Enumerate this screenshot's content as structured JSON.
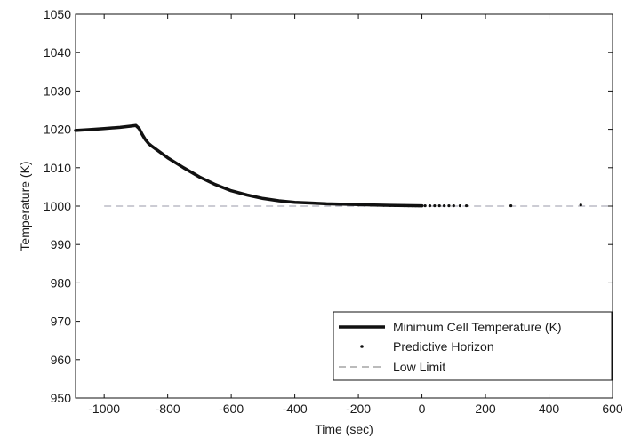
{
  "chart_data": {
    "type": "line",
    "title": "",
    "xlabel": "Time (sec)",
    "ylabel": "Temperature (K)",
    "xlim": [
      -1090,
      600
    ],
    "ylim": [
      950,
      1050
    ],
    "xticks": [
      -1000,
      -800,
      -600,
      -400,
      -200,
      0,
      200,
      400,
      600
    ],
    "yticks": [
      950,
      960,
      970,
      980,
      990,
      1000,
      1010,
      1020,
      1030,
      1040,
      1050
    ],
    "grid": false,
    "legend_position": "bottom-right",
    "series": [
      {
        "name": "Minimum Cell Temperature (K)",
        "style": "solid-thick",
        "x": [
          -1090,
          -1050,
          -1000,
          -950,
          -920,
          -900,
          -890,
          -880,
          -870,
          -860,
          -850,
          -800,
          -750,
          -700,
          -650,
          -600,
          -550,
          -500,
          -450,
          -400,
          -350,
          -300,
          -250,
          -200,
          -150,
          -100,
          -50,
          0
        ],
        "y": [
          1019.7,
          1019.9,
          1020.2,
          1020.5,
          1020.8,
          1021.0,
          1020.2,
          1018.6,
          1017.3,
          1016.3,
          1015.6,
          1012.6,
          1010.0,
          1007.6,
          1005.6,
          1004.0,
          1002.9,
          1002.0,
          1001.4,
          1001.0,
          1000.8,
          1000.6,
          1000.5,
          1000.4,
          1000.3,
          1000.2,
          1000.15,
          1000.1
        ]
      },
      {
        "name": "Predictive Horizon",
        "style": "dots",
        "x": [
          -200,
          -180,
          -160,
          -140,
          -120,
          -100,
          -85,
          -70,
          -55,
          -42,
          -30,
          -20,
          -10,
          0,
          10,
          25,
          40,
          55,
          70,
          85,
          100,
          120,
          140,
          280,
          500
        ],
        "y": [
          1000.3,
          1000.28,
          1000.25,
          1000.22,
          1000.2,
          1000.18,
          1000.15,
          1000.13,
          1000.12,
          1000.1,
          1000.1,
          1000.1,
          1000.1,
          1000.1,
          1000.1,
          1000.1,
          1000.1,
          1000.1,
          1000.1,
          1000.1,
          1000.1,
          1000.1,
          1000.1,
          1000.1,
          1000.3
        ]
      },
      {
        "name": "Low Limit",
        "style": "dashed",
        "x": [
          -1000,
          600
        ],
        "y": [
          1000,
          1000
        ]
      }
    ],
    "colors": {
      "line": "#111111",
      "dashed": "#9a9aa8",
      "axis": "#111111"
    }
  }
}
